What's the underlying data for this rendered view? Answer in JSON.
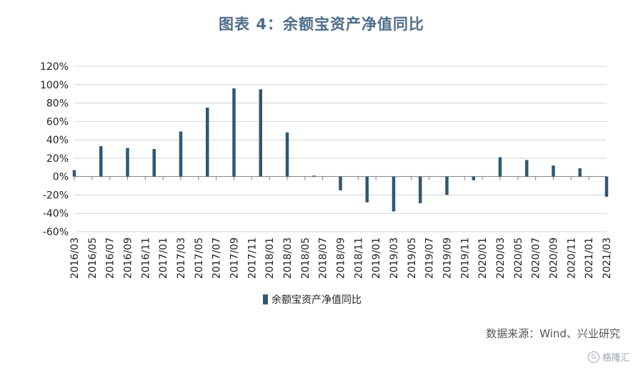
{
  "title": "图表 4：余额宝资产净值同比",
  "source": "数据来源：Wind、兴业研究",
  "watermark": {
    "badge": "G",
    "text": "格隆汇"
  },
  "colors": {
    "bar": "#2e5877",
    "grid": "#d4d4d4",
    "axis": "#7f7f7f"
  },
  "chart_data": {
    "type": "bar",
    "categories": [
      "2016/03",
      "2016/05",
      "2016/07",
      "2016/09",
      "2016/11",
      "2017/01",
      "2017/03",
      "2017/05",
      "2017/07",
      "2017/09",
      "2017/11",
      "2018/01",
      "2018/03",
      "2018/05",
      "2018/07",
      "2018/09",
      "2018/11",
      "2019/01",
      "2019/03",
      "2019/05",
      "2019/07",
      "2019/09",
      "2019/11",
      "2020/01",
      "2020/03",
      "2020/05",
      "2020/07",
      "2020/09",
      "2020/11",
      "2021/01",
      "2021/03"
    ],
    "series": [
      {
        "name": "余额宝资产净值同比",
        "values": [
          {
            "x": "2016/03",
            "y": 7
          },
          {
            "x": "2016/06",
            "y": 33
          },
          {
            "x": "2016/09",
            "y": 31
          },
          {
            "x": "2016/12",
            "y": 30
          },
          {
            "x": "2017/03",
            "y": 49
          },
          {
            "x": "2017/06",
            "y": 75
          },
          {
            "x": "2017/09",
            "y": 96
          },
          {
            "x": "2017/12",
            "y": 95
          },
          {
            "x": "2018/03",
            "y": 48
          },
          {
            "x": "2018/06",
            "y": 1
          },
          {
            "x": "2018/09",
            "y": -15
          },
          {
            "x": "2018/12",
            "y": -28
          },
          {
            "x": "2019/03",
            "y": -38
          },
          {
            "x": "2019/06",
            "y": -29
          },
          {
            "x": "2019/09",
            "y": -20
          },
          {
            "x": "2019/12",
            "y": -4
          },
          {
            "x": "2020/03",
            "y": 21
          },
          {
            "x": "2020/06",
            "y": 18
          },
          {
            "x": "2020/09",
            "y": 12
          },
          {
            "x": "2020/12",
            "y": 9
          },
          {
            "x": "2021/03",
            "y": -22
          }
        ]
      }
    ],
    "y_ticks": [
      "120%",
      "100%",
      "80%",
      "60%",
      "40%",
      "20%",
      "0%",
      "-20%",
      "-40%",
      "-60%"
    ],
    "ylim": [
      -60,
      120
    ],
    "y_unit": "%",
    "xlabel": "",
    "ylabel": "",
    "grid": true,
    "legend": "bottom-center"
  }
}
